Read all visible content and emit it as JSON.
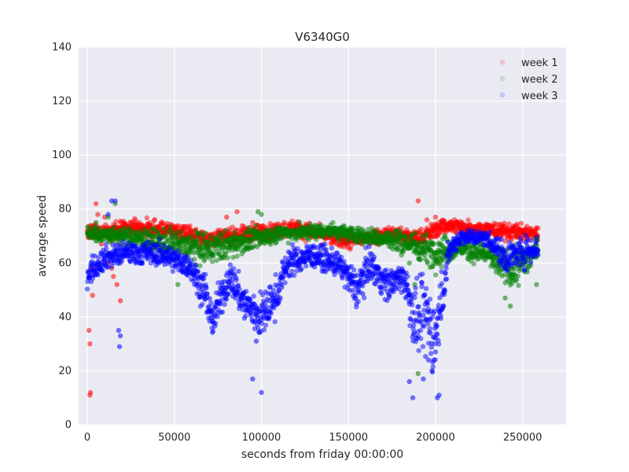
{
  "chart_data": {
    "type": "scatter",
    "title": "V6340G0",
    "xlabel": "seconds from friday 00:00:00",
    "ylabel": "average speed",
    "xlim": [
      -5000,
      275000
    ],
    "ylim": [
      0,
      140
    ],
    "xticks": [
      0,
      50000,
      100000,
      150000,
      200000,
      250000
    ],
    "yticks": [
      0,
      20,
      40,
      60,
      80,
      100,
      120,
      140
    ],
    "grid": true,
    "legend_position": "top-right",
    "series": [
      {
        "name": "week 1",
        "color": "#ff0000",
        "segments": [
          [
            0,
            71,
            2
          ],
          [
            25000,
            73,
            2
          ],
          [
            50000,
            72,
            2
          ],
          [
            68000,
            69,
            2
          ],
          [
            120000,
            73,
            2
          ],
          [
            150000,
            68,
            2
          ],
          [
            175000,
            71,
            2
          ],
          [
            190000,
            69,
            2
          ],
          [
            205000,
            74,
            2
          ],
          [
            235000,
            72,
            2
          ],
          [
            259000,
            71,
            2
          ]
        ],
        "points": [
          [
            1000,
            35
          ],
          [
            1500,
            30
          ],
          [
            1800,
            12
          ],
          [
            1500,
            11
          ],
          [
            3000,
            48
          ],
          [
            2500,
            58
          ],
          [
            5000,
            82
          ],
          [
            6000,
            78
          ],
          [
            8000,
            67
          ],
          [
            10000,
            77
          ],
          [
            12000,
            60
          ],
          [
            14000,
            58
          ],
          [
            15000,
            55
          ],
          [
            17000,
            52
          ],
          [
            19000,
            46
          ],
          [
            80000,
            77
          ],
          [
            86000,
            79
          ],
          [
            95000,
            75
          ],
          [
            190000,
            83
          ],
          [
            195000,
            76
          ],
          [
            200000,
            77
          ]
        ]
      },
      {
        "name": "week 2",
        "color": "#007f00",
        "segments": [
          [
            0,
            71,
            2
          ],
          [
            20000,
            70,
            2
          ],
          [
            50000,
            67,
            4
          ],
          [
            68000,
            65,
            4
          ],
          [
            90000,
            68,
            3
          ],
          [
            110000,
            71,
            2
          ],
          [
            140000,
            72,
            2
          ],
          [
            160000,
            70,
            2
          ],
          [
            180000,
            68,
            3
          ],
          [
            200000,
            64,
            4
          ],
          [
            215000,
            66,
            3
          ],
          [
            230000,
            63,
            3
          ],
          [
            243000,
            57,
            5
          ],
          [
            255000,
            63,
            4
          ],
          [
            259000,
            65,
            3
          ]
        ],
        "points": [
          [
            5000,
            75
          ],
          [
            12000,
            77
          ],
          [
            16000,
            82
          ],
          [
            18000,
            70
          ],
          [
            52000,
            52
          ],
          [
            98000,
            79
          ],
          [
            100000,
            78
          ],
          [
            188000,
            52
          ],
          [
            190000,
            19
          ],
          [
            185000,
            60
          ],
          [
            240000,
            47
          ],
          [
            243000,
            44
          ],
          [
            258000,
            52
          ]
        ]
      },
      {
        "name": "week 3",
        "color": "#0000ff",
        "segments": [
          [
            0,
            56,
            3
          ],
          [
            10000,
            62,
            3
          ],
          [
            25000,
            64,
            3
          ],
          [
            45000,
            63,
            3
          ],
          [
            60000,
            58,
            3
          ],
          [
            68000,
            48,
            5
          ],
          [
            72000,
            38,
            4
          ],
          [
            75000,
            44,
            5
          ],
          [
            82000,
            55,
            4
          ],
          [
            90000,
            45,
            5
          ],
          [
            100000,
            40,
            6
          ],
          [
            108000,
            47,
            5
          ],
          [
            115000,
            60,
            4
          ],
          [
            130000,
            63,
            3
          ],
          [
            145000,
            59,
            3
          ],
          [
            155000,
            50,
            5
          ],
          [
            162000,
            60,
            4
          ],
          [
            172000,
            52,
            4
          ],
          [
            182000,
            55,
            4
          ],
          [
            188000,
            38,
            8
          ],
          [
            195000,
            40,
            10
          ],
          [
            200000,
            32,
            10
          ],
          [
            208000,
            65,
            3
          ],
          [
            215000,
            70,
            2
          ],
          [
            230000,
            69,
            2
          ],
          [
            240000,
            62,
            4
          ],
          [
            250000,
            64,
            4
          ],
          [
            259000,
            66,
            3
          ]
        ],
        "points": [
          [
            14000,
            83
          ],
          [
            16000,
            83
          ],
          [
            12000,
            78
          ],
          [
            18000,
            35
          ],
          [
            19000,
            33
          ],
          [
            18500,
            29
          ],
          [
            95000,
            17
          ],
          [
            100000,
            12
          ],
          [
            97000,
            31
          ],
          [
            187000,
            10
          ],
          [
            193000,
            17
          ],
          [
            198000,
            20
          ],
          [
            201000,
            10
          ],
          [
            202000,
            11
          ],
          [
            200000,
            27
          ],
          [
            185000,
            16
          ],
          [
            196000,
            24
          ]
        ]
      }
    ]
  }
}
